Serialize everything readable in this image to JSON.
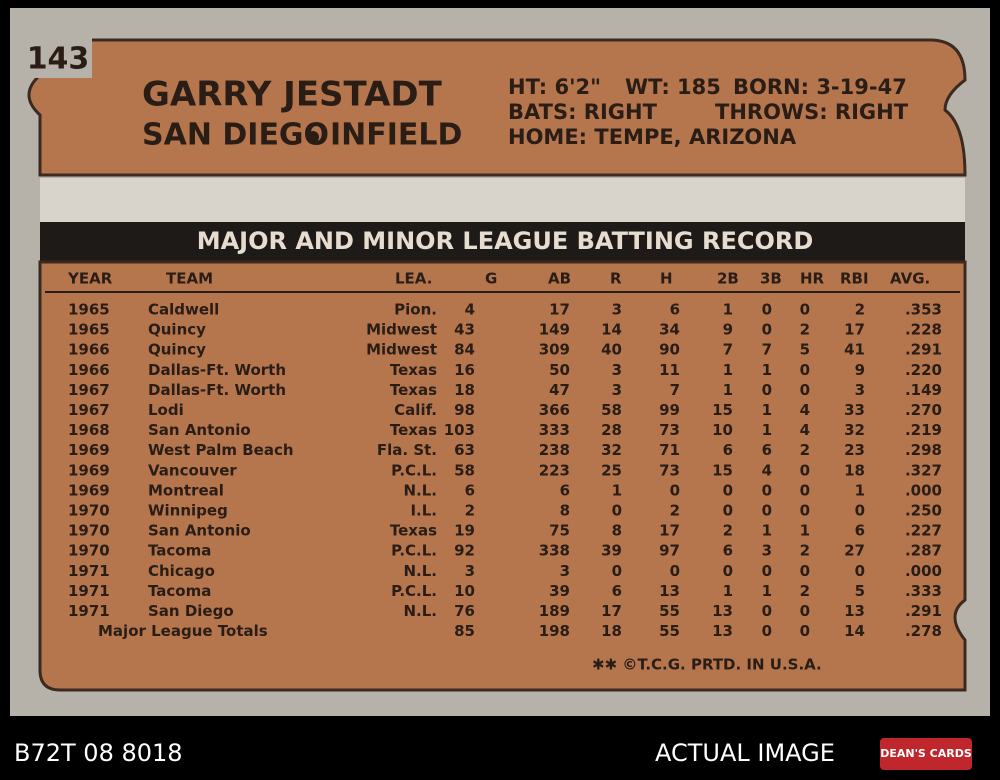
{
  "card_number": "143",
  "player": {
    "name": "GARRY JESTADT",
    "team": "SAN DIEGO",
    "position": "INFIELD"
  },
  "bio": [
    [
      "HT: 6'2\"",
      "WT: 185",
      "BORN: 3-19-47"
    ],
    [
      "BATS: RIGHT",
      "THROWS: RIGHT"
    ],
    [
      "HOME: TEMPE, ARIZONA"
    ]
  ],
  "table": {
    "title": "MAJOR AND MINOR LEAGUE BATTING RECORD",
    "headers": [
      "YEAR",
      "TEAM",
      "LEA.",
      "G",
      "AB",
      "R",
      "H",
      "2B",
      "3B",
      "HR",
      "RBI",
      "AVG."
    ],
    "rows": [
      [
        "1965",
        "Caldwell",
        "Pion.",
        "4",
        "17",
        "3",
        "6",
        "1",
        "0",
        "0",
        "2",
        ".353"
      ],
      [
        "1965",
        "Quincy",
        "Midwest",
        "43",
        "149",
        "14",
        "34",
        "9",
        "0",
        "2",
        "17",
        ".228"
      ],
      [
        "1966",
        "Quincy",
        "Midwest",
        "84",
        "309",
        "40",
        "90",
        "7",
        "7",
        "5",
        "41",
        ".291"
      ],
      [
        "1966",
        "Dallas-Ft. Worth",
        "Texas",
        "16",
        "50",
        "3",
        "11",
        "1",
        "1",
        "0",
        "9",
        ".220"
      ],
      [
        "1967",
        "Dallas-Ft. Worth",
        "Texas",
        "18",
        "47",
        "3",
        "7",
        "1",
        "0",
        "0",
        "3",
        ".149"
      ],
      [
        "1967",
        "Lodi",
        "Calif.",
        "98",
        "366",
        "58",
        "99",
        "15",
        "1",
        "4",
        "33",
        ".270"
      ],
      [
        "1968",
        "San Antonio",
        "Texas",
        "103",
        "333",
        "28",
        "73",
        "10",
        "1",
        "4",
        "32",
        ".219"
      ],
      [
        "1969",
        "West Palm Beach",
        "Fla. St.",
        "63",
        "238",
        "32",
        "71",
        "6",
        "6",
        "2",
        "23",
        ".298"
      ],
      [
        "1969",
        "Vancouver",
        "P.C.L.",
        "58",
        "223",
        "25",
        "73",
        "15",
        "4",
        "0",
        "18",
        ".327"
      ],
      [
        "1969",
        "Montreal",
        "N.L.",
        "6",
        "6",
        "1",
        "0",
        "0",
        "0",
        "0",
        "1",
        ".000"
      ],
      [
        "1970",
        "Winnipeg",
        "I.L.",
        "2",
        "8",
        "0",
        "2",
        "0",
        "0",
        "0",
        "0",
        ".250"
      ],
      [
        "1970",
        "San Antonio",
        "Texas",
        "19",
        "75",
        "8",
        "17",
        "2",
        "1",
        "1",
        "6",
        ".227"
      ],
      [
        "1970",
        "Tacoma",
        "P.C.L.",
        "92",
        "338",
        "39",
        "97",
        "6",
        "3",
        "2",
        "27",
        ".287"
      ],
      [
        "1971",
        "Chicago",
        "N.L.",
        "3",
        "3",
        "0",
        "0",
        "0",
        "0",
        "0",
        "0",
        ".000"
      ],
      [
        "1971",
        "Tacoma",
        "P.C.L.",
        "10",
        "39",
        "6",
        "13",
        "1",
        "1",
        "2",
        "5",
        ".333"
      ],
      [
        "1971",
        "San Diego",
        "N.L.",
        "76",
        "189",
        "17",
        "55",
        "13",
        "0",
        "0",
        "13",
        ".291"
      ]
    ],
    "totals": {
      "label": "Major League Totals",
      "values": [
        "85",
        "198",
        "18",
        "55",
        "13",
        "0",
        "0",
        "14",
        ".278"
      ]
    }
  },
  "imprint": "✱✱ ©T.C.G. PRTD. IN U.S.A.",
  "footer": {
    "sku": "B72T 08 8018",
    "note": "ACTUAL IMAGE",
    "logo": "DEAN'S CARDS"
  }
}
